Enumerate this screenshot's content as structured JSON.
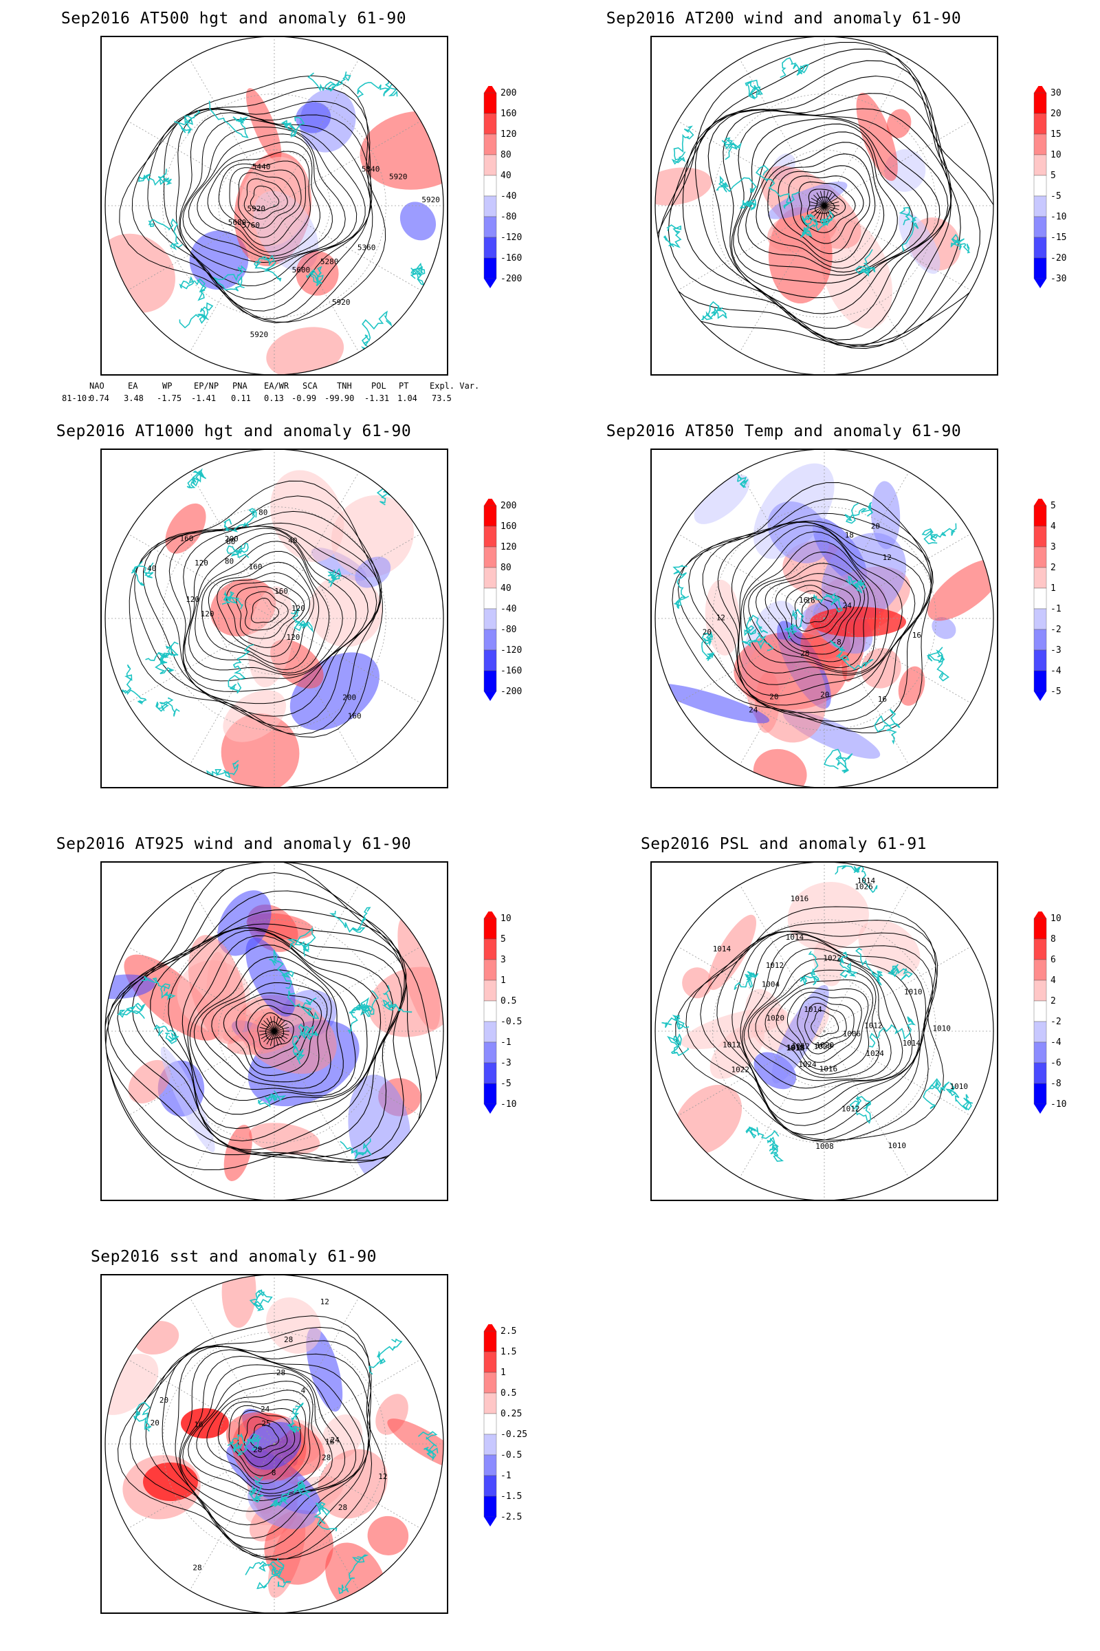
{
  "panels": [
    {
      "title": "Sep2016 AT500 hgt and anomaly 61-90",
      "colorbar": {
        "colors": [
          "#ff0000",
          "#ff4a4a",
          "#ff8c8c",
          "#ffc7c7",
          "#ffffff",
          "#c8c8ff",
          "#8c8cff",
          "#4a4aff",
          "#0000ff"
        ],
        "labels": [
          "200",
          "160",
          "120",
          "80",
          "40",
          "-40",
          "-80",
          "-120",
          "-160",
          "-200"
        ]
      },
      "contour_labels": [
        "5920",
        "5920",
        "5280",
        "5360",
        "5600",
        "5680",
        "5760",
        "5840",
        "5920",
        "5920",
        "5920",
        "5440"
      ]
    },
    {
      "title": "Sep2016 AT200 wind and anomaly 61-90",
      "colorbar": {
        "colors": [
          "#ff0000",
          "#ff4a4a",
          "#ff8c8c",
          "#ffc7c7",
          "#ffffff",
          "#c8c8ff",
          "#8c8cff",
          "#4a4aff",
          "#0000ff"
        ],
        "labels": [
          "30",
          "20",
          "15",
          "10",
          "5",
          "-5",
          "-10",
          "-15",
          "-20",
          "-30"
        ]
      },
      "contour_labels": []
    },
    {
      "title": "Sep2016 AT1000 hgt and anomaly 61-90",
      "colorbar": {
        "colors": [
          "#ff0000",
          "#ff4a4a",
          "#ff8c8c",
          "#ffc7c7",
          "#ffffff",
          "#c8c8ff",
          "#8c8cff",
          "#4a4aff",
          "#0000ff"
        ],
        "labels": [
          "200",
          "160",
          "120",
          "80",
          "40",
          "-40",
          "-80",
          "-120",
          "-160",
          "-200"
        ]
      },
      "contour_labels": [
        "160",
        "160",
        "200",
        "80",
        "160",
        "80",
        "40",
        "120",
        "160",
        "40",
        "120",
        "120",
        "200",
        "120",
        "80",
        "120"
      ]
    },
    {
      "title": "Sep2016 AT850 Temp and anomaly 61-90",
      "colorbar": {
        "colors": [
          "#ff0000",
          "#ff4a4a",
          "#ff8c8c",
          "#ffc7c7",
          "#ffffff",
          "#c8c8ff",
          "#8c8cff",
          "#4a4aff",
          "#0000ff"
        ],
        "labels": [
          "5",
          "4",
          "3",
          "2",
          "1",
          "-1",
          "-2",
          "-3",
          "-4",
          "-5"
        ]
      },
      "contour_labels": [
        "16",
        "16",
        "16",
        "12",
        "20",
        "-8",
        "20",
        "24",
        "28",
        "20",
        "20",
        "24",
        "18",
        "12",
        "16"
      ]
    },
    {
      "title": "Sep2016 AT925 wind and anomaly 61-90",
      "colorbar": {
        "colors": [
          "#ff0000",
          "#ff4a4a",
          "#ff8c8c",
          "#ffc7c7",
          "#ffffff",
          "#c8c8ff",
          "#8c8cff",
          "#4a4aff",
          "#0000ff"
        ],
        "labels": [
          "10",
          "5",
          "3",
          "1",
          "0.5",
          "-0.5",
          "-1",
          "-3",
          "-5",
          "-10"
        ]
      },
      "contour_labels": []
    },
    {
      "title": "Sep2016 PSL and anomaly 61-91",
      "colorbar": {
        "colors": [
          "#ff0000",
          "#ff4a4a",
          "#ff8c8c",
          "#ffc7c7",
          "#ffffff",
          "#c8c8ff",
          "#8c8cff",
          "#4a4aff",
          "#0000ff"
        ],
        "labels": [
          "10",
          "8",
          "6",
          "4",
          "2",
          "-2",
          "-4",
          "-6",
          "-8",
          "-10"
        ]
      },
      "contour_labels": [
        "1010",
        "1010",
        "1012",
        "1014",
        "1016",
        "1018",
        "1026",
        "1024",
        "1022",
        "1020",
        "1018",
        "1012",
        "1014",
        "1016",
        "1012",
        "1020",
        "1012",
        "1010",
        "1006",
        "1004",
        "1008",
        "1024",
        "1022",
        "1020",
        "1014",
        "1010",
        "1014",
        "1012",
        "1014"
      ]
    },
    {
      "title": "Sep2016 sst and anomaly 61-90",
      "colorbar": {
        "colors": [
          "#ff0000",
          "#ff4a4a",
          "#ff8c8c",
          "#ffc7c7",
          "#ffffff",
          "#c8c8ff",
          "#8c8cff",
          "#4a4aff",
          "#0000ff"
        ],
        "labels": [
          "2.5",
          "1.5",
          "1",
          "0.5",
          "0.25",
          "-0.25",
          "-0.5",
          "-1",
          "-1.5",
          "-2.5"
        ]
      },
      "contour_labels": [
        "28",
        "28",
        "24",
        "20",
        "16",
        "12",
        "8",
        "4",
        "28",
        "24",
        "20",
        "16",
        "12",
        "28",
        "28",
        "28",
        "25"
      ]
    }
  ],
  "index_table": {
    "headers": [
      "NAO",
      "EA",
      "WP",
      "EP/NP",
      "PNA",
      "EA/WR",
      "SCA",
      "TNH",
      "POL",
      "PT",
      "Expl. Var."
    ],
    "row_label": "81-10:",
    "values": [
      "0.74",
      "3.48",
      "-1.75",
      "-1.41",
      "0.11",
      "0.13",
      "-0.99",
      "-99.90",
      "-1.31",
      "1.04",
      "73.5"
    ]
  },
  "style": {
    "coast_color": "#1fc4c4",
    "contour_color": "#000000",
    "grid_color": "#9a9a9a"
  }
}
